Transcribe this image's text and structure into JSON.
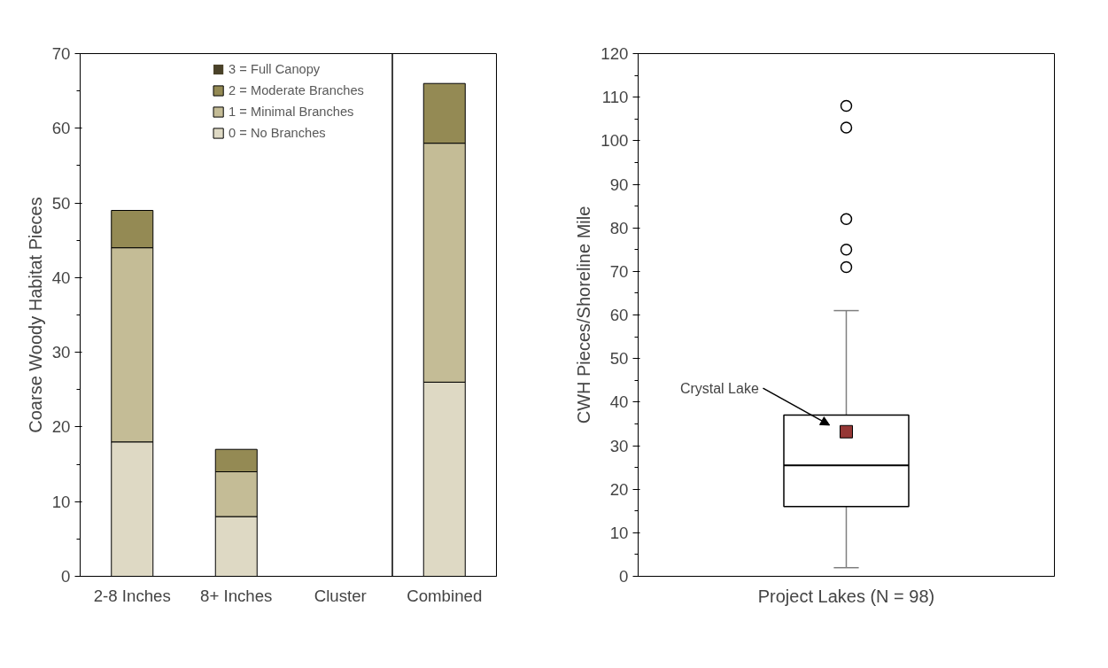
{
  "chart_data": [
    {
      "type": "bar",
      "stacked": true,
      "ylabel": "Coarse Woody Habitat Pieces",
      "categories": [
        "2-8 Inches",
        "8+ Inches",
        "Cluster",
        "Combined"
      ],
      "ylim": [
        0,
        70
      ],
      "yticks": [
        0,
        10,
        20,
        30,
        40,
        50,
        60,
        70
      ],
      "grid": false,
      "legend": "top",
      "series": [
        {
          "name": "0 = No Branches",
          "color": "#ded9c4",
          "values": [
            18,
            8,
            0,
            26
          ]
        },
        {
          "name": "1 = Minimal Branches",
          "color": "#c4bc96",
          "values": [
            26,
            6,
            0,
            32
          ]
        },
        {
          "name": "2 = Moderate Branches",
          "color": "#948a54",
          "values": [
            5,
            3,
            0,
            8
          ]
        },
        {
          "name": "3 = Full Canopy",
          "color": "#4a4229",
          "values": [
            0,
            0,
            0,
            0
          ]
        }
      ]
    },
    {
      "type": "box",
      "xlabel": "Project Lakes (N = 98)",
      "ylabel": "CWH Pieces/Shoreline Mile",
      "categories": [
        null
      ],
      "ylim": [
        0,
        120
      ],
      "yticks": [
        0,
        10,
        20,
        30,
        40,
        50,
        60,
        70,
        80,
        90,
        100,
        110,
        120
      ],
      "grid": false,
      "boxes": [
        {
          "low": 2,
          "q1": 16,
          "median": 25.5,
          "q3": 37,
          "high": 61,
          "outliers": [
            71,
            75,
            82,
            103,
            108
          ]
        }
      ],
      "series": [
        {
          "type": "scatter",
          "marker": "square",
          "color": "#953735",
          "x": [
            null
          ],
          "values": [
            33.2
          ]
        }
      ],
      "annotations": [
        "Crystal Lake"
      ]
    }
  ]
}
